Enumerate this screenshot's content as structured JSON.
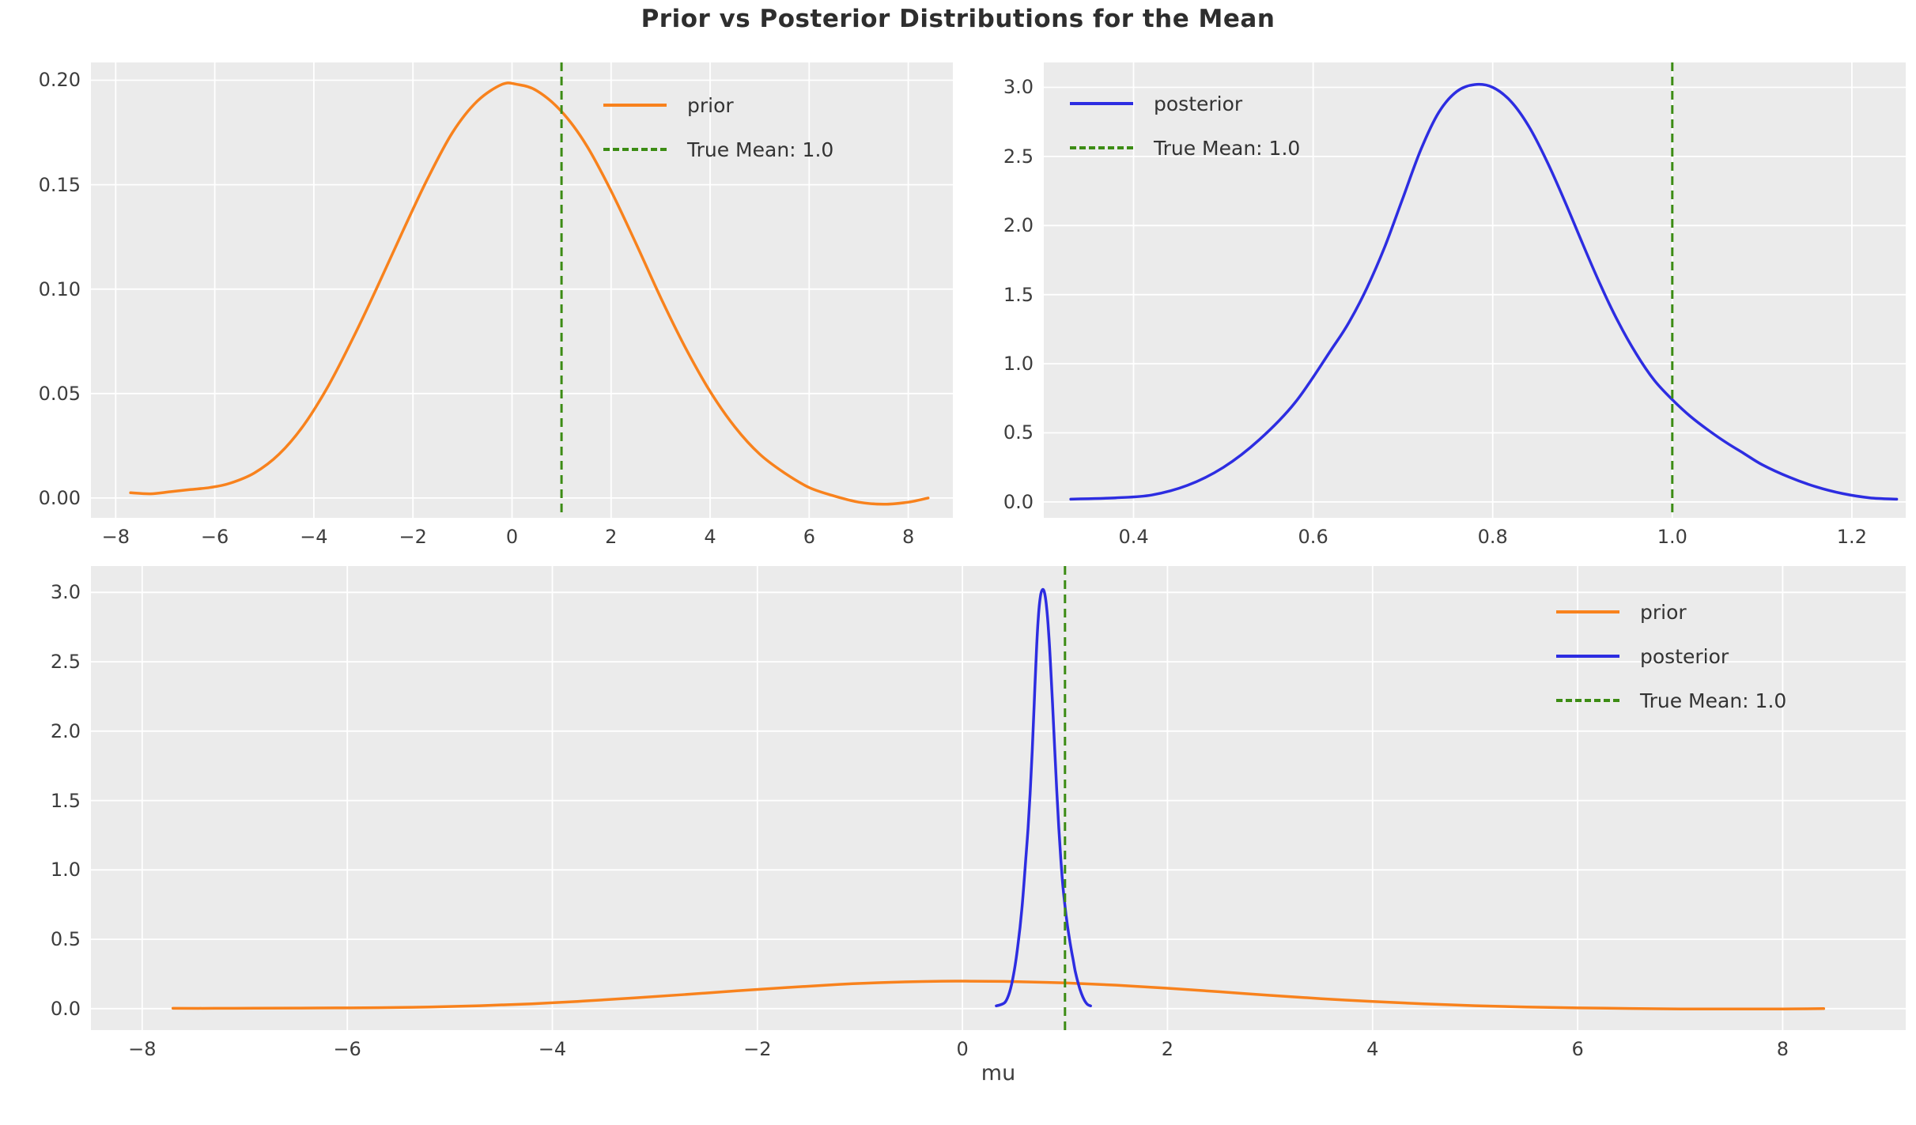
{
  "title": "Prior vs Posterior Distributions for the Mean",
  "colors": {
    "prior": "#f8821d",
    "posterior": "#2d2de1",
    "true_mean": "#3c8c14",
    "axes_background": "#ebebeb",
    "figure_background": "#ffffff",
    "grid": "#ffffff",
    "tick_label": "#3d3d3d",
    "title_text": "#2e2e2e"
  },
  "chart_data": [
    {
      "type": "line",
      "name": "prior-distribution",
      "xlabel": "",
      "ylabel": "",
      "xlim": [
        -8.5,
        8.9
      ],
      "ylim": [
        -0.0095,
        0.2085
      ],
      "xticks": [
        -8,
        -6,
        -4,
        -2,
        0,
        2,
        4,
        6,
        8
      ],
      "xtick_labels": [
        "−8",
        "−6",
        "−4",
        "−2",
        "0",
        "2",
        "4",
        "6",
        "8"
      ],
      "yticks": [
        0.0,
        0.05,
        0.1,
        0.15,
        0.2
      ],
      "ytick_labels": [
        "0.00",
        "0.05",
        "0.10",
        "0.15",
        "0.20"
      ],
      "grid": true,
      "legend_position": "upper-right-inside",
      "legend": [
        {
          "label": "prior",
          "color_key": "prior",
          "dashed": false
        },
        {
          "label": "True Mean: 1.0",
          "color_key": "true_mean",
          "dashed": true
        }
      ],
      "vline": {
        "x": 1.0,
        "color_key": "true_mean",
        "dashed": true,
        "label": "True Mean: 1.0"
      },
      "series": [
        {
          "name": "prior",
          "color_key": "prior",
          "points": [
            [
              -7.7,
              0.0025
            ],
            [
              -7.3,
              0.002
            ],
            [
              -6.9,
              0.003
            ],
            [
              -6.5,
              0.004
            ],
            [
              -6.1,
              0.005
            ],
            [
              -5.7,
              0.007
            ],
            [
              -5.2,
              0.012
            ],
            [
              -4.7,
              0.021
            ],
            [
              -4.2,
              0.035
            ],
            [
              -3.7,
              0.054
            ],
            [
              -3.2,
              0.077
            ],
            [
              -2.7,
              0.102
            ],
            [
              -2.2,
              0.128
            ],
            [
              -1.7,
              0.153
            ],
            [
              -1.2,
              0.175
            ],
            [
              -0.7,
              0.19
            ],
            [
              -0.2,
              0.198
            ],
            [
              0.1,
              0.198
            ],
            [
              0.5,
              0.195
            ],
            [
              1,
              0.185
            ],
            [
              1.5,
              0.169
            ],
            [
              2,
              0.147
            ],
            [
              2.5,
              0.122
            ],
            [
              3,
              0.096
            ],
            [
              3.5,
              0.072
            ],
            [
              4,
              0.051
            ],
            [
              4.5,
              0.034
            ],
            [
              5,
              0.021
            ],
            [
              5.5,
              0.012
            ],
            [
              6,
              0.005
            ],
            [
              6.5,
              0.001
            ],
            [
              7,
              -0.002
            ],
            [
              7.5,
              -0.003
            ],
            [
              8,
              -0.002
            ],
            [
              8.4,
              0
            ]
          ]
        }
      ]
    },
    {
      "type": "line",
      "name": "posterior-distribution",
      "xlabel": "",
      "ylabel": "",
      "xlim": [
        0.3,
        1.26
      ],
      "ylim": [
        -0.115,
        3.18
      ],
      "xticks": [
        0.4,
        0.6,
        0.8,
        1.0,
        1.2
      ],
      "xtick_labels": [
        "0.4",
        "0.6",
        "0.8",
        "1.0",
        "1.2"
      ],
      "yticks": [
        0.0,
        0.5,
        1.0,
        1.5,
        2.0,
        2.5,
        3.0
      ],
      "ytick_labels": [
        "0.0",
        "0.5",
        "1.0",
        "1.5",
        "2.0",
        "2.5",
        "3.0"
      ],
      "grid": true,
      "legend_position": "upper-left-inside",
      "legend": [
        {
          "label": "posterior",
          "color_key": "posterior",
          "dashed": false
        },
        {
          "label": "True Mean: 1.0",
          "color_key": "true_mean",
          "dashed": true
        }
      ],
      "vline": {
        "x": 1.0,
        "color_key": "true_mean",
        "dashed": true,
        "label": "True Mean: 1.0"
      },
      "series": [
        {
          "name": "posterior",
          "color_key": "posterior",
          "points": [
            [
              0.33,
              0.02
            ],
            [
              0.38,
              0.03
            ],
            [
              0.42,
              0.05
            ],
            [
              0.46,
              0.12
            ],
            [
              0.5,
              0.25
            ],
            [
              0.54,
              0.45
            ],
            [
              0.58,
              0.72
            ],
            [
              0.62,
              1.1
            ],
            [
              0.64,
              1.3
            ],
            [
              0.66,
              1.55
            ],
            [
              0.68,
              1.85
            ],
            [
              0.7,
              2.2
            ],
            [
              0.72,
              2.55
            ],
            [
              0.74,
              2.82
            ],
            [
              0.76,
              2.97
            ],
            [
              0.78,
              3.02
            ],
            [
              0.8,
              3.0
            ],
            [
              0.82,
              2.9
            ],
            [
              0.84,
              2.72
            ],
            [
              0.86,
              2.47
            ],
            [
              0.88,
              2.18
            ],
            [
              0.9,
              1.87
            ],
            [
              0.92,
              1.57
            ],
            [
              0.94,
              1.3
            ],
            [
              0.96,
              1.07
            ],
            [
              0.98,
              0.88
            ],
            [
              1.0,
              0.74
            ],
            [
              1.02,
              0.62
            ],
            [
              1.04,
              0.52
            ],
            [
              1.06,
              0.43
            ],
            [
              1.08,
              0.35
            ],
            [
              1.1,
              0.27
            ],
            [
              1.13,
              0.18
            ],
            [
              1.16,
              0.11
            ],
            [
              1.19,
              0.06
            ],
            [
              1.22,
              0.03
            ],
            [
              1.25,
              0.02
            ]
          ]
        }
      ]
    },
    {
      "type": "line",
      "name": "prior-vs-posterior-combined",
      "xlabel": "mu",
      "ylabel": "",
      "xlim": [
        -8.5,
        9.2
      ],
      "ylim": [
        -0.155,
        3.19
      ],
      "xticks": [
        -8,
        -6,
        -4,
        -2,
        0,
        2,
        4,
        6,
        8
      ],
      "xtick_labels": [
        "−8",
        "−6",
        "−4",
        "−2",
        "0",
        "2",
        "4",
        "6",
        "8"
      ],
      "yticks": [
        0.0,
        0.5,
        1.0,
        1.5,
        2.0,
        2.5,
        3.0
      ],
      "ytick_labels": [
        "0.0",
        "0.5",
        "1.0",
        "1.5",
        "2.0",
        "2.5",
        "3.0"
      ],
      "grid": true,
      "legend_position": "upper-right-inside",
      "legend": [
        {
          "label": "prior",
          "color_key": "prior",
          "dashed": false
        },
        {
          "label": "posterior",
          "color_key": "posterior",
          "dashed": false
        },
        {
          "label": "True Mean: 1.0",
          "color_key": "true_mean",
          "dashed": true
        }
      ],
      "vline": {
        "x": 1.0,
        "color_key": "true_mean",
        "dashed": true,
        "label": "True Mean: 1.0"
      },
      "series": [
        {
          "name": "prior",
          "color_key": "prior",
          "points": [
            [
              -7.7,
              0.0025
            ],
            [
              -7.3,
              0.002
            ],
            [
              -6.9,
              0.003
            ],
            [
              -6.5,
              0.004
            ],
            [
              -6.1,
              0.005
            ],
            [
              -5.7,
              0.007
            ],
            [
              -5.2,
              0.012
            ],
            [
              -4.7,
              0.021
            ],
            [
              -4.2,
              0.035
            ],
            [
              -3.7,
              0.054
            ],
            [
              -3.2,
              0.077
            ],
            [
              -2.7,
              0.102
            ],
            [
              -2.2,
              0.128
            ],
            [
              -1.7,
              0.153
            ],
            [
              -1.2,
              0.175
            ],
            [
              -0.7,
              0.19
            ],
            [
              -0.2,
              0.198
            ],
            [
              0.1,
              0.198
            ],
            [
              0.5,
              0.195
            ],
            [
              1,
              0.185
            ],
            [
              1.5,
              0.169
            ],
            [
              2,
              0.147
            ],
            [
              2.5,
              0.122
            ],
            [
              3,
              0.096
            ],
            [
              3.5,
              0.072
            ],
            [
              4,
              0.051
            ],
            [
              4.5,
              0.034
            ],
            [
              5,
              0.021
            ],
            [
              5.5,
              0.012
            ],
            [
              6,
              0.005
            ],
            [
              6.5,
              0.001
            ],
            [
              7,
              -0.002
            ],
            [
              7.5,
              -0.003
            ],
            [
              8,
              -0.002
            ],
            [
              8.4,
              0
            ]
          ]
        },
        {
          "name": "posterior",
          "color_key": "posterior",
          "points": [
            [
              0.33,
              0.02
            ],
            [
              0.38,
              0.03
            ],
            [
              0.42,
              0.05
            ],
            [
              0.46,
              0.12
            ],
            [
              0.5,
              0.25
            ],
            [
              0.54,
              0.45
            ],
            [
              0.58,
              0.72
            ],
            [
              0.62,
              1.1
            ],
            [
              0.64,
              1.3
            ],
            [
              0.66,
              1.55
            ],
            [
              0.68,
              1.85
            ],
            [
              0.7,
              2.2
            ],
            [
              0.72,
              2.55
            ],
            [
              0.74,
              2.82
            ],
            [
              0.76,
              2.97
            ],
            [
              0.78,
              3.02
            ],
            [
              0.8,
              3.0
            ],
            [
              0.82,
              2.9
            ],
            [
              0.84,
              2.72
            ],
            [
              0.86,
              2.47
            ],
            [
              0.88,
              2.18
            ],
            [
              0.9,
              1.87
            ],
            [
              0.92,
              1.57
            ],
            [
              0.94,
              1.3
            ],
            [
              0.96,
              1.07
            ],
            [
              0.98,
              0.88
            ],
            [
              1.0,
              0.74
            ],
            [
              1.02,
              0.62
            ],
            [
              1.04,
              0.52
            ],
            [
              1.06,
              0.43
            ],
            [
              1.08,
              0.35
            ],
            [
              1.1,
              0.27
            ],
            [
              1.13,
              0.18
            ],
            [
              1.16,
              0.11
            ],
            [
              1.19,
              0.06
            ],
            [
              1.22,
              0.03
            ],
            [
              1.25,
              0.02
            ]
          ]
        }
      ]
    }
  ]
}
